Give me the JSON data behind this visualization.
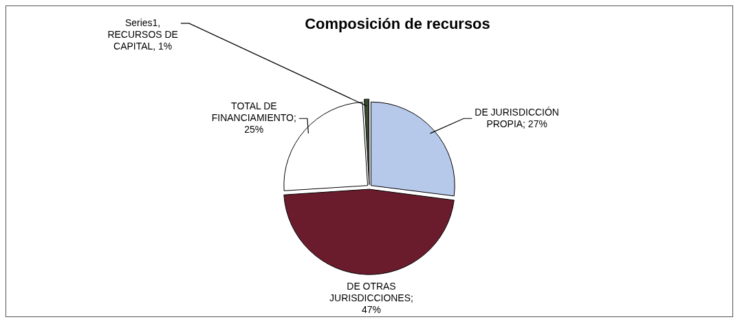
{
  "chart_data": {
    "type": "pie",
    "title": "Composición de recursos",
    "categories": [
      "DE JURISDICCIÓN PROPIA",
      "DE OTRAS JURISDICCIONES",
      "TOTAL DE FINANCIAMIENTO",
      "RECURSOS DE CAPITAL"
    ],
    "series": [
      {
        "name": "Series1,",
        "values": [
          27,
          47,
          25,
          1
        ]
      }
    ],
    "colors": [
      "#b7c9ea",
      "#6a1c2c",
      "#ffffff",
      "#3a4a30"
    ],
    "value_labels": [
      "; 27%",
      "; 47%",
      "; 25%",
      ", 1%"
    ],
    "legend": false
  }
}
